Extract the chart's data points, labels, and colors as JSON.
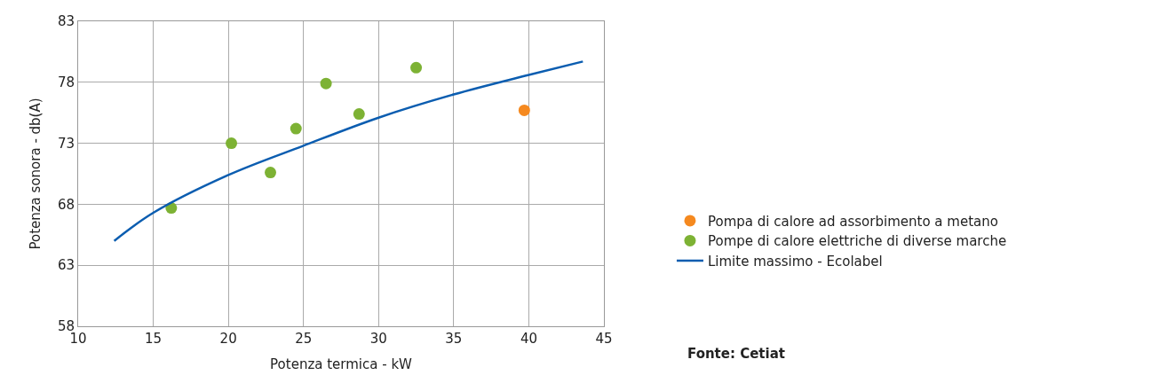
{
  "chart_data": {
    "type": "scatter",
    "xlabel": "Potenza termica - kW",
    "ylabel": "Potenza sonora - db(A)",
    "xlim": [
      10,
      45
    ],
    "xticks": [
      10,
      15,
      20,
      25,
      30,
      35,
      40,
      45
    ],
    "ylim": [
      58,
      83
    ],
    "yticks": [
      58,
      63,
      68,
      73,
      78,
      83
    ],
    "grid": true,
    "legend": "right",
    "marker": "circle",
    "series": [
      {
        "name": "Pompa di calore ad assorbimento a metano",
        "color": "#f5891f",
        "x": [
          39.7
        ],
        "values": [
          75.7
        ]
      },
      {
        "name": "Pompe di calore elettriche di diverse marche",
        "color": "#7db234",
        "x": [
          16.2,
          20.2,
          22.8,
          24.5,
          26.5,
          28.7,
          32.5
        ],
        "values": [
          67.7,
          73.0,
          70.6,
          74.2,
          77.9,
          75.4,
          79.2
        ]
      },
      {
        "name": "Limite massimo - Ecolabel",
        "type": "line",
        "marker": "none",
        "color": "#0b5db0",
        "x": [
          12.4,
          15,
          20,
          25,
          30,
          35,
          40,
          43.6
        ],
        "values": [
          65.0,
          67.3,
          70.4,
          72.8,
          75.1,
          77.0,
          78.6,
          79.7
        ]
      }
    ],
    "annotations": [
      "Fonte: Cetiat"
    ]
  }
}
